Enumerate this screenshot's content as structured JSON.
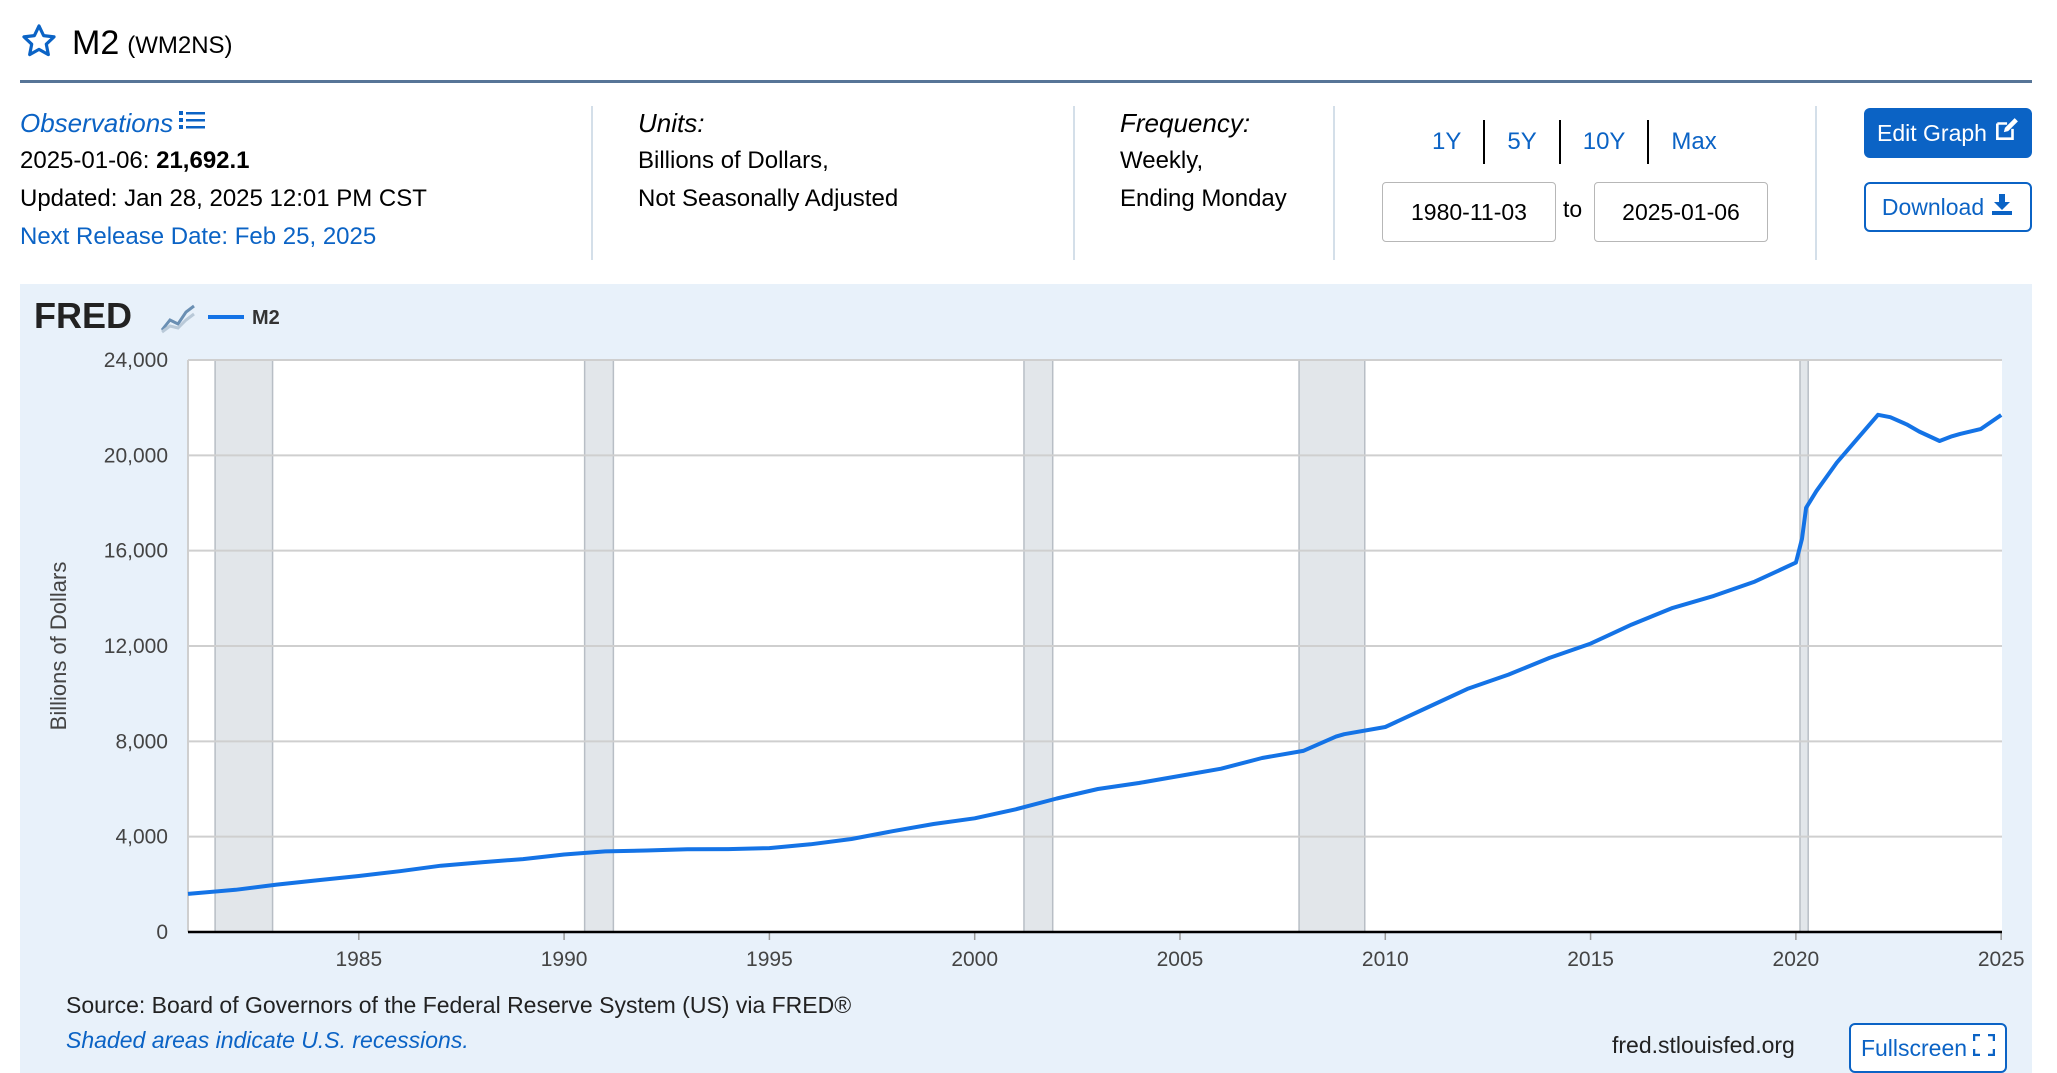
{
  "header": {
    "title": "M2",
    "series_code": "(WM2NS)"
  },
  "observations": {
    "label": "Observations",
    "date": "2025-01-06:",
    "value": "21,692.1",
    "updated": "Updated: Jan 28, 2025 12:01 PM CST",
    "next_release": "Next Release Date: Feb 25, 2025"
  },
  "units": {
    "label": "Units:",
    "line1": "Billions of Dollars,",
    "line2": "Not Seasonally Adjusted"
  },
  "frequency": {
    "label": "Frequency:",
    "line1": "Weekly,",
    "line2": "Ending Monday"
  },
  "range": {
    "buttons": [
      "1Y",
      "5Y",
      "10Y",
      "Max"
    ],
    "from": "1980-11-03",
    "to_label": "to",
    "to": "2025-01-06"
  },
  "actions": {
    "edit_graph": "Edit Graph",
    "download": "Download",
    "fullscreen": "Fullscreen"
  },
  "footer": {
    "source": "Source: Board of Governors of the Federal Reserve System (US) via FRED®",
    "shaded_note": "Shaded areas indicate U.S. recessions.",
    "site": "fred.stlouisfed.org"
  },
  "colors": {
    "accent": "#0b63c5",
    "series_line": "#1473e6",
    "recession_fill": "#e2e6ea",
    "panel_bg": "#e8f1fa"
  },
  "chart_data": {
    "type": "line",
    "logo": "FRED",
    "title": "",
    "ylabel": "Billions of Dollars",
    "xlabel": "",
    "xlim": [
      1980.84,
      2025.02
    ],
    "ylim": [
      0,
      24000
    ],
    "yticks": [
      0,
      4000,
      8000,
      12000,
      16000,
      20000,
      24000
    ],
    "ytick_labels": [
      "0",
      "4,000",
      "8,000",
      "12,000",
      "16,000",
      "20,000",
      "24,000"
    ],
    "xticks": [
      1985,
      1990,
      1995,
      2000,
      2005,
      2010,
      2015,
      2020,
      2025
    ],
    "xtick_labels": [
      "1985",
      "1990",
      "1995",
      "2000",
      "2005",
      "2010",
      "2015",
      "2020",
      "2025"
    ],
    "grid": true,
    "legend": "top-left",
    "recessions": [
      [
        1981.5,
        1982.9
      ],
      [
        1990.5,
        1991.2
      ],
      [
        2001.2,
        2001.9
      ],
      [
        2007.9,
        2009.5
      ],
      [
        2020.1,
        2020.3
      ]
    ],
    "series": [
      {
        "name": "M2",
        "x": [
          1980.84,
          1982.0,
          1983.0,
          1984.0,
          1985.0,
          1986.0,
          1987.0,
          1988.0,
          1989.0,
          1990.0,
          1991.0,
          1992.0,
          1993.0,
          1994.0,
          1995.0,
          1996.0,
          1997.0,
          1998.0,
          1999.0,
          2000.0,
          2001.0,
          2002.0,
          2003.0,
          2004.0,
          2005.0,
          2006.0,
          2007.0,
          2008.0,
          2008.8,
          2009.0,
          2010.0,
          2011.0,
          2012.0,
          2013.0,
          2014.0,
          2015.0,
          2016.0,
          2017.0,
          2018.0,
          2019.0,
          2020.0,
          2020.15,
          2020.25,
          2020.5,
          2021.0,
          2021.5,
          2022.0,
          2022.3,
          2022.7,
          2023.0,
          2023.5,
          2023.8,
          2024.0,
          2024.5,
          2025.0
        ],
        "y": [
          1600,
          1770,
          1990,
          2170,
          2350,
          2550,
          2780,
          2930,
          3060,
          3250,
          3380,
          3420,
          3470,
          3480,
          3520,
          3680,
          3900,
          4230,
          4530,
          4770,
          5150,
          5600,
          6000,
          6250,
          6550,
          6850,
          7300,
          7600,
          8200,
          8300,
          8600,
          9400,
          10200,
          10800,
          11500,
          12100,
          12900,
          13600,
          14100,
          14700,
          15500,
          16500,
          17800,
          18500,
          19700,
          20700,
          21700,
          21600,
          21300,
          21000,
          20600,
          20800,
          20900,
          21100,
          21692
        ]
      }
    ]
  }
}
